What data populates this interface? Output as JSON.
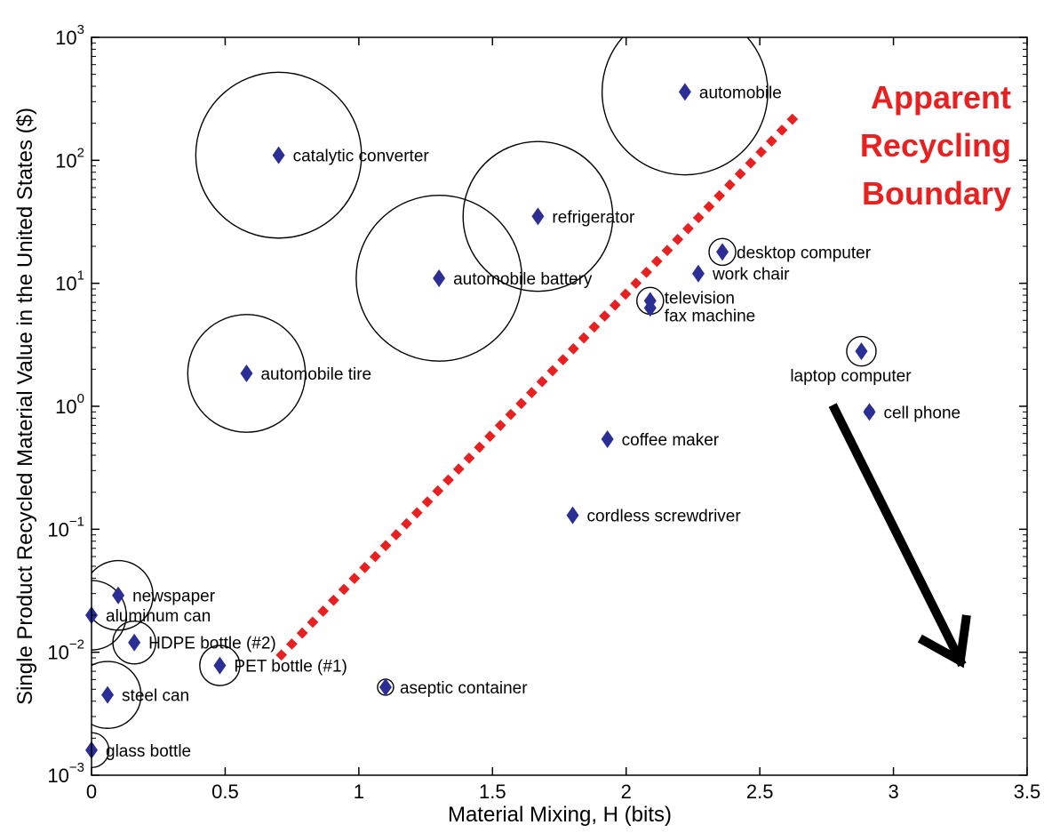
{
  "chart_data": {
    "type": "scatter",
    "xlabel": "Material Mixing, H (bits)",
    "ylabel": "Single Product Recycled Material Value in the United States ($)",
    "x_ticks": [
      "0",
      "0.5",
      "1",
      "1.5",
      "2",
      "2.5",
      "3",
      "3.5"
    ],
    "y_ticks": [
      {
        "base": "10",
        "exp": "−3"
      },
      {
        "base": "10",
        "exp": "−2"
      },
      {
        "base": "10",
        "exp": "−1"
      },
      {
        "base": "10",
        "exp": "0"
      },
      {
        "base": "10",
        "exp": "1"
      },
      {
        "base": "10",
        "exp": "2"
      },
      {
        "base": "10",
        "exp": "3"
      }
    ],
    "xlim": [
      0,
      3.5
    ],
    "ylim": [
      0.001,
      1000
    ],
    "yscale": "log",
    "grid": false,
    "marker": "diamond",
    "marker_color": "#2b2f95",
    "points": [
      {
        "label": "automobile",
        "x": 2.22,
        "y": 360,
        "size": 0.62
      },
      {
        "label": "catalytic converter",
        "x": 0.7,
        "y": 110,
        "size": 0.62
      },
      {
        "label": "refrigerator",
        "x": 1.67,
        "y": 35,
        "size": 0.56
      },
      {
        "label": "automobile battery",
        "x": 1.3,
        "y": 11,
        "size": 0.62
      },
      {
        "label": "desktop computer",
        "x": 2.36,
        "y": 18,
        "size": 0.1
      },
      {
        "label": "work chair",
        "x": 2.27,
        "y": 12,
        "size": 0
      },
      {
        "label": "television",
        "x": 2.09,
        "y": 7.2,
        "size": 0.1
      },
      {
        "label": "fax machine",
        "x": 2.09,
        "y": 6.3,
        "size": 0
      },
      {
        "label": "automobile tire",
        "x": 0.58,
        "y": 1.85,
        "size": 0.44
      },
      {
        "label": "laptop computer",
        "x": 2.88,
        "y": 2.8,
        "size": 0.11
      },
      {
        "label": "cell phone",
        "x": 2.91,
        "y": 0.9,
        "size": 0.035
      },
      {
        "label": "coffee maker",
        "x": 1.93,
        "y": 0.54,
        "size": 0
      },
      {
        "label": "cordless screwdriver",
        "x": 1.8,
        "y": 0.13,
        "size": 0
      },
      {
        "label": "newspaper",
        "x": 0.1,
        "y": 0.029,
        "size": 0.26
      },
      {
        "label": "aluminum can",
        "x": 0,
        "y": 0.02,
        "size": 0.26
      },
      {
        "label": "HDPE bottle (#2)",
        "x": 0.16,
        "y": 0.012,
        "size": 0.16
      },
      {
        "label": "PET bottle (#1)",
        "x": 0.48,
        "y": 0.0078,
        "size": 0.15
      },
      {
        "label": "steel can",
        "x": 0.06,
        "y": 0.0045,
        "size": 0.25
      },
      {
        "label": "aseptic container",
        "x": 1.1,
        "y": 0.0052,
        "size": 0.06
      },
      {
        "label": "glass bottle",
        "x": 0,
        "y": 0.0016,
        "size": 0.13
      }
    ],
    "boundary_line": {
      "x": [
        0.7,
        2.65
      ],
      "y": [
        0.009,
        250
      ],
      "color": "#e82020",
      "style": "dotted"
    },
    "annotation": {
      "lines": [
        "Apparent",
        "Recycling",
        "Boundary"
      ],
      "color": "#e82020"
    },
    "arrow": {
      "from": [
        2.78,
        0.95
      ],
      "to": [
        3.25,
        0.0085
      ],
      "color": "#000000"
    }
  }
}
